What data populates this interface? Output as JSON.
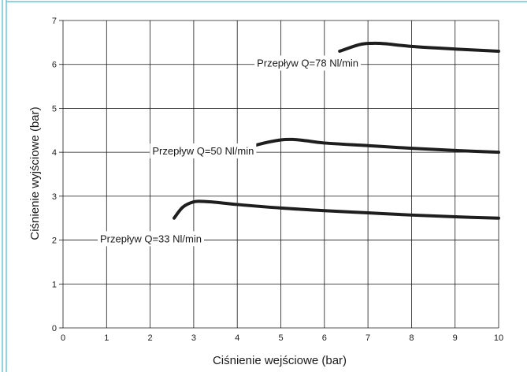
{
  "chart_data": {
    "type": "line",
    "title": "",
    "xlabel": "Ciśnienie wejściowe (bar)",
    "ylabel": "Ciśnienie wyjściowe (bar)",
    "xlim": [
      0,
      10
    ],
    "ylim": [
      0,
      7
    ],
    "xticks": [
      "0",
      "1",
      "2",
      "3",
      "4",
      "5",
      "6",
      "7",
      "8",
      "9",
      "10"
    ],
    "yticks": [
      "0",
      "1",
      "2",
      "3",
      "4",
      "5",
      "6",
      "7"
    ],
    "grid": true,
    "series": [
      {
        "name": "Przepływ  Q=33 Nl/min",
        "x": [
          2.55,
          2.75,
          3.0,
          3.2,
          3.5,
          4.0,
          5.0,
          6.0,
          7.0,
          8.0,
          9.0,
          10.0
        ],
        "y": [
          2.5,
          2.75,
          2.87,
          2.88,
          2.86,
          2.81,
          2.73,
          2.67,
          2.62,
          2.57,
          2.53,
          2.5
        ]
      },
      {
        "name": "Przepływ  Q=50 Nl/min",
        "x": [
          4.0,
          4.5,
          5.0,
          5.3,
          5.6,
          6.0,
          7.0,
          8.0,
          9.0,
          10.0
        ],
        "y": [
          4.02,
          4.18,
          4.28,
          4.29,
          4.26,
          4.21,
          4.15,
          4.09,
          4.04,
          4.0
        ]
      },
      {
        "name": "Przepływ Q=78 Nl/min",
        "x": [
          6.35,
          6.8,
          7.1,
          7.4,
          8.0,
          9.0,
          10.0
        ],
        "y": [
          6.3,
          6.45,
          6.48,
          6.47,
          6.41,
          6.35,
          6.3
        ]
      }
    ]
  },
  "colors": {
    "line": "#1e1e1e",
    "grid": "#1a1a1a",
    "frame_accent": "#6cc5d9"
  }
}
